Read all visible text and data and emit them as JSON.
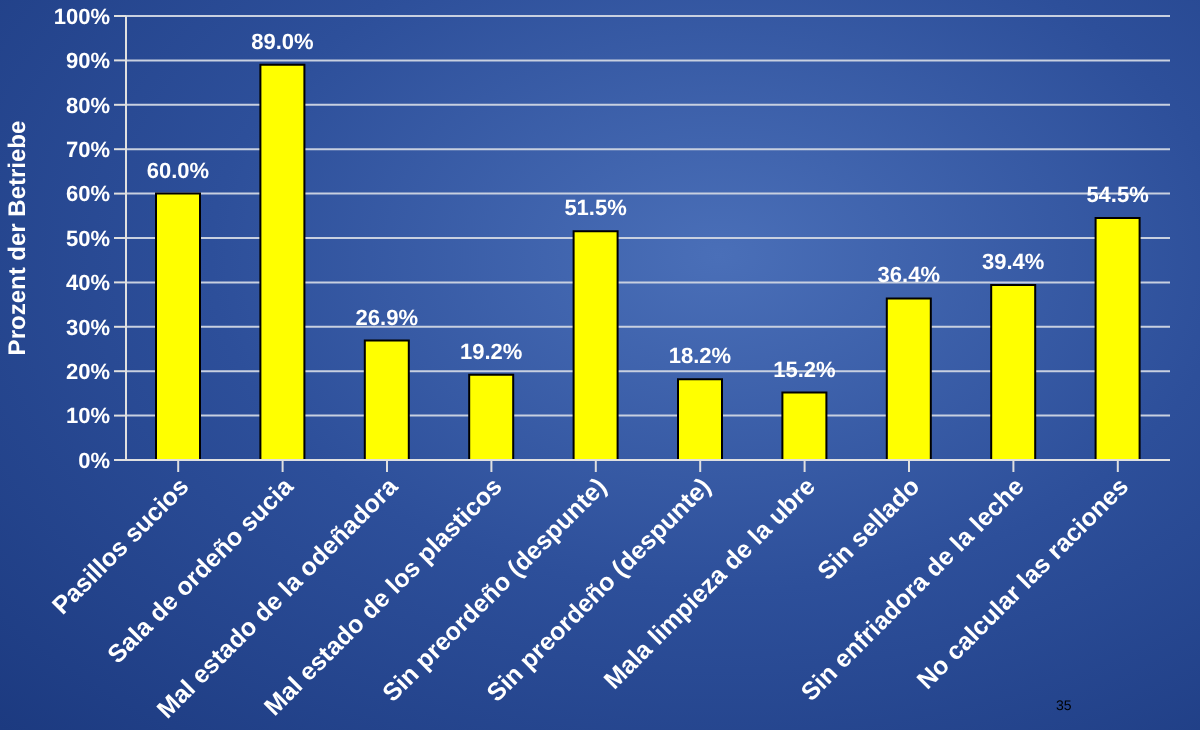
{
  "chart_data": {
    "type": "bar",
    "ylabel": "Prozent der Betriebe",
    "categories": [
      "Pasillos sucios",
      "Sala de ordeño sucia",
      "Mal estado de la odeñadora",
      "Mal estado de los plasticos",
      "Sin preordeño (despunte)",
      "Sin preordeño (despunte)",
      "Mala limpieza de la ubre",
      "Sin sellado",
      "Sin enfriadora de la leche",
      "No calcular las raciones"
    ],
    "values": [
      60.0,
      89.0,
      26.9,
      19.2,
      51.5,
      18.2,
      15.2,
      36.4,
      39.4,
      54.5
    ],
    "value_labels": [
      "60.0%",
      "89.0%",
      "26.9%",
      "19.2%",
      "51.5%",
      "18.2%",
      "15.2%",
      "36.4%",
      "39.4%",
      "54.5%"
    ],
    "color": "#ffff00",
    "ylim": [
      0,
      100
    ],
    "yticks": [
      {
        "value": 0,
        "label": "0%"
      },
      {
        "value": 10,
        "label": "10%"
      },
      {
        "value": 20,
        "label": "20%"
      },
      {
        "value": 30,
        "label": "30%"
      },
      {
        "value": 40,
        "label": "40%"
      },
      {
        "value": 50,
        "label": "50%"
      },
      {
        "value": 60,
        "label": "60%"
      },
      {
        "value": 70,
        "label": "70%"
      },
      {
        "value": 80,
        "label": "80%"
      },
      {
        "value": 90,
        "label": "90%"
      },
      {
        "value": 100,
        "label": "100%"
      }
    ],
    "grid": "y",
    "legend": false,
    "annotations": [
      "35"
    ]
  }
}
